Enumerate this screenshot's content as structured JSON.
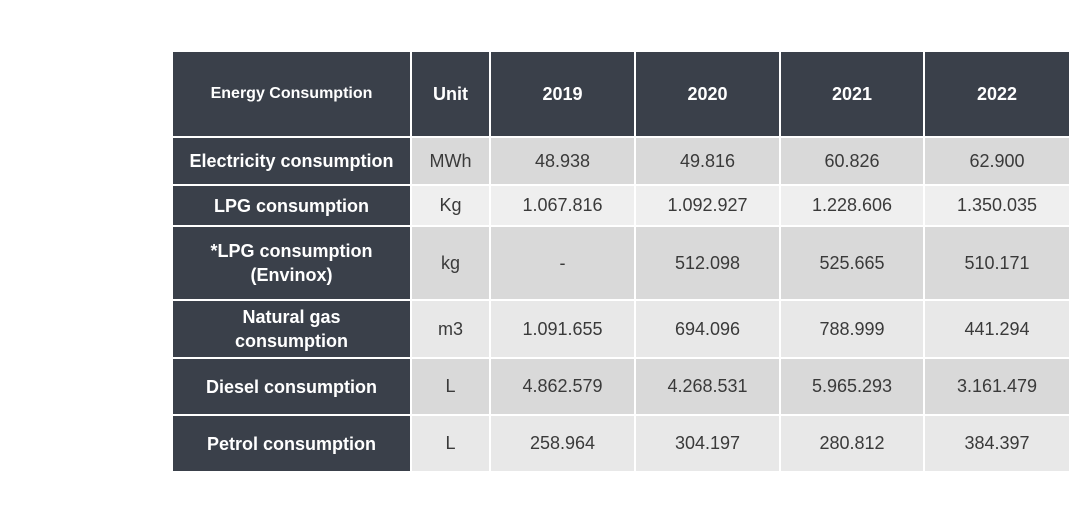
{
  "table": {
    "headers": [
      "Energy Consumption",
      "Unit",
      "2019",
      "2020",
      "2021",
      "2022"
    ],
    "rows": [
      {
        "label": "Electricity consumption",
        "unit": "MWh",
        "values": [
          "48.938",
          "49.816",
          "60.826",
          "62.900"
        ]
      },
      {
        "label": "LPG consumption",
        "unit": "Kg",
        "values": [
          "1.067.816",
          "1.092.927",
          "1.228.606",
          "1.350.035"
        ]
      },
      {
        "label_lines": [
          "*LPG consumption",
          "(Envinox)"
        ],
        "unit": "kg",
        "values": [
          "-",
          "512.098",
          "525.665",
          "510.171"
        ]
      },
      {
        "label_lines": [
          "Natural gas",
          "consumption"
        ],
        "unit": "m3",
        "values": [
          "1.091.655",
          "694.096",
          "788.999",
          "441.294"
        ]
      },
      {
        "label": "Diesel consumption",
        "unit": "L",
        "values": [
          "4.862.579",
          "4.268.531",
          "5.965.293",
          "3.161.479"
        ]
      },
      {
        "label": "Petrol consumption",
        "unit": "L",
        "values": [
          "258.964",
          "304.197",
          "280.812",
          "384.397"
        ]
      }
    ]
  },
  "colors": {
    "header_bg": "#3a404a",
    "header_text": "#ffffff",
    "cell_dark": "#d9d9d9",
    "cell_light": "#efefef"
  }
}
